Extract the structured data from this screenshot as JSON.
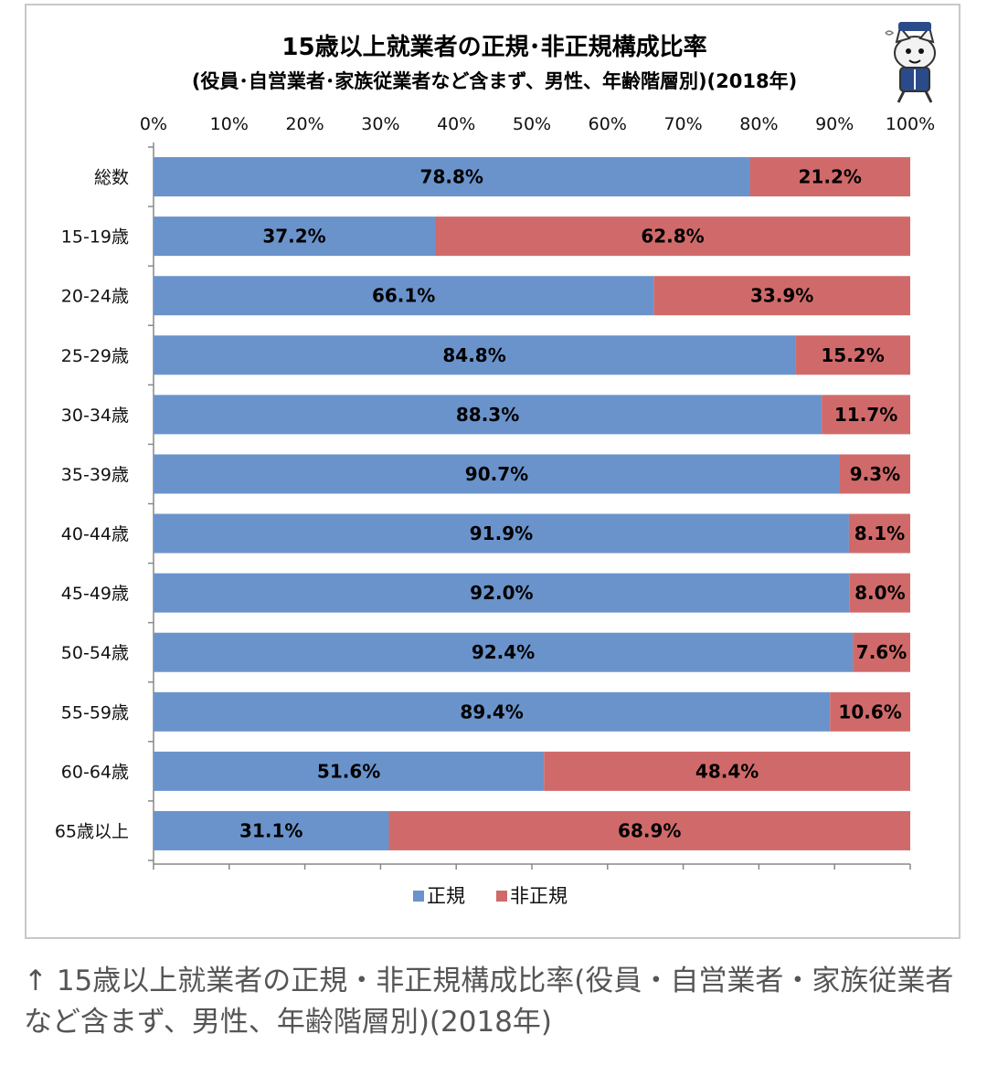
{
  "chart_data": {
    "type": "bar",
    "orientation": "horizontal-stacked-100",
    "title": "15歳以上就業者の正規･非正規構成比率",
    "subtitle": "(役員･自営業者･家族従業者など含まず、男性、年齢階層別)(2018年)",
    "xlabel": "",
    "ylabel": "",
    "xlim": [
      0,
      100
    ],
    "x_ticks": [
      "0%",
      "10%",
      "20%",
      "30%",
      "40%",
      "50%",
      "60%",
      "70%",
      "80%",
      "90%",
      "100%"
    ],
    "x_tick_values": [
      0,
      10,
      20,
      30,
      40,
      50,
      60,
      70,
      80,
      90,
      100
    ],
    "grid": false,
    "legend_position": "bottom",
    "categories": [
      "総数",
      "15-19歳",
      "20-24歳",
      "25-29歳",
      "30-34歳",
      "35-39歳",
      "40-44歳",
      "45-49歳",
      "50-54歳",
      "55-59歳",
      "60-64歳",
      "65歳以上"
    ],
    "series": [
      {
        "name": "正規",
        "color": "#6a93cb",
        "values": [
          78.8,
          37.2,
          66.1,
          84.8,
          88.3,
          90.7,
          91.9,
          92.0,
          92.4,
          89.4,
          51.6,
          31.1
        ],
        "labels": [
          "78.8%",
          "37.2%",
          "66.1%",
          "84.8%",
          "88.3%",
          "90.7%",
          "91.9%",
          "92.0%",
          "92.4%",
          "89.4%",
          "51.6%",
          "31.1%"
        ]
      },
      {
        "name": "非正規",
        "color": "#d06a6a",
        "values": [
          21.2,
          62.8,
          33.9,
          15.2,
          11.7,
          9.3,
          8.1,
          8.0,
          7.6,
          10.6,
          48.4,
          68.9
        ],
        "labels": [
          "21.2%",
          "62.8%",
          "33.9%",
          "15.2%",
          "11.7%",
          "9.3%",
          "8.1%",
          "8.0%",
          "7.6%",
          "10.6%",
          "48.4%",
          "68.9%"
        ]
      }
    ]
  },
  "mascot_icon": "cat-mascot-icon",
  "caption": "↑ 15歳以上就業者の正規・非正規構成比率(役員・自営業者・家族従業者など含まず、男性、年齢階層別)(2018年)"
}
